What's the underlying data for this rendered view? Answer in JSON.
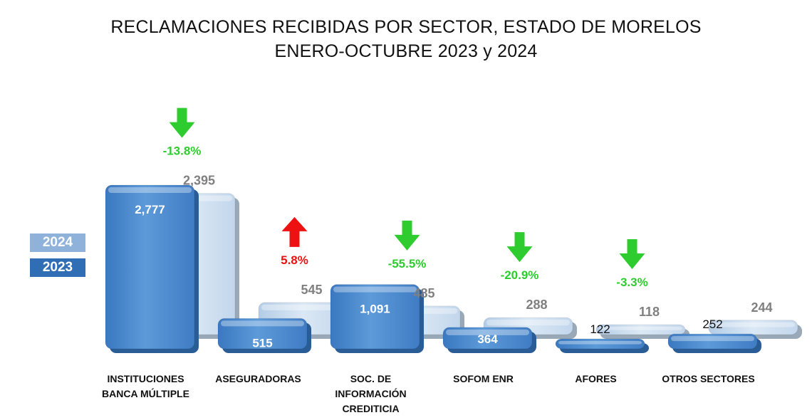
{
  "title": "RECLAMACIONES RECIBIDAS POR SECTOR, ESTADO DE MORELOS",
  "subtitle": "ENERO-OCTUBRE 2023 y 2024",
  "colors": {
    "s2023": "#4a88cc",
    "s2024": "#c9dcef",
    "down": "#2ecc2e",
    "up": "#ee1111",
    "value_2024": "#808080",
    "value_2023": "#ffffff"
  },
  "chart_data": {
    "type": "bar",
    "title": "RECLAMACIONES RECIBIDAS POR SECTOR, ESTADO DE MORELOS",
    "subtitle": "ENERO-OCTUBRE 2023 y 2024",
    "categories": [
      [
        "INSTITUCIONES",
        "BANCA MÚLTIPLE"
      ],
      [
        "ASEGURADORAS"
      ],
      [
        "SOC. DE",
        "INFORMACIÓN",
        "CREDITICIA"
      ],
      [
        "SOFOM ENR"
      ],
      [
        "AFORES"
      ],
      [
        "OTROS SECTORES"
      ]
    ],
    "series": [
      {
        "name": "2023",
        "values": [
          2777,
          515,
          1091,
          364,
          122,
          252
        ],
        "labels": [
          "2,777",
          "515",
          "1,091",
          "364",
          "122",
          "252"
        ]
      },
      {
        "name": "2024",
        "values": [
          2395,
          545,
          485,
          288,
          118,
          244
        ],
        "labels": [
          "2,395",
          "545",
          "485",
          "288",
          "118",
          "244"
        ]
      }
    ],
    "changes": [
      {
        "label": "-13.8%",
        "direction": "down"
      },
      {
        "label": "5.8%",
        "direction": "up"
      },
      {
        "label": "-55.5%",
        "direction": "down"
      },
      {
        "label": "-20.9%",
        "direction": "down"
      },
      {
        "label": "-3.3%",
        "direction": "down"
      },
      {
        "label": "",
        "direction": "none"
      }
    ],
    "legend": [
      "2024",
      "2023"
    ],
    "legend_position": "left",
    "grid": false
  }
}
